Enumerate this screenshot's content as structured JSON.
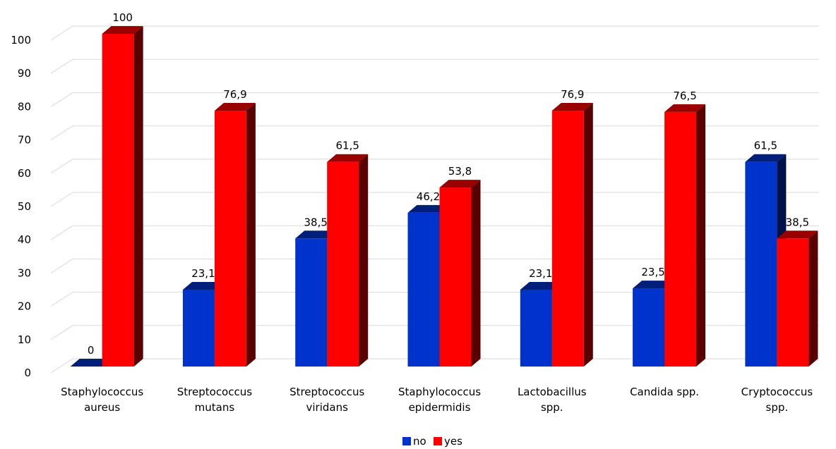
{
  "chart_data": {
    "type": "bar",
    "style": "3d-clustered-column",
    "title": "",
    "xlabel": "",
    "ylabel": "",
    "ylim": [
      0,
      100
    ],
    "yticks": [
      0,
      10,
      20,
      30,
      40,
      50,
      60,
      70,
      80,
      90,
      100
    ],
    "grid": true,
    "legend_position": "bottom",
    "categories": [
      [
        "Staphylococcus",
        "aureus"
      ],
      [
        "Streptococcus",
        "mutans"
      ],
      [
        "Streptococcus",
        "viridans"
      ],
      [
        "Staphylococcus",
        "epidermidis"
      ],
      [
        "Lactobacillus",
        "spp."
      ],
      [
        "Candida spp."
      ],
      [
        "Cryptococcus",
        "spp."
      ]
    ],
    "series": [
      {
        "name": "no",
        "color": "#0033cc",
        "values": [
          0,
          23.1,
          38.5,
          46.2,
          23.1,
          23.5,
          61.5
        ],
        "labels": [
          "0",
          "23,1",
          "38,5",
          "46,2",
          "23,1",
          "23,5",
          "61,5"
        ]
      },
      {
        "name": "yes",
        "color": "#ff0000",
        "values": [
          100,
          76.9,
          61.5,
          53.8,
          76.9,
          76.5,
          38.5
        ],
        "labels": [
          "100",
          "76,9",
          "61,5",
          "53,8",
          "76,9",
          "76,5",
          "38,5"
        ]
      }
    ]
  }
}
